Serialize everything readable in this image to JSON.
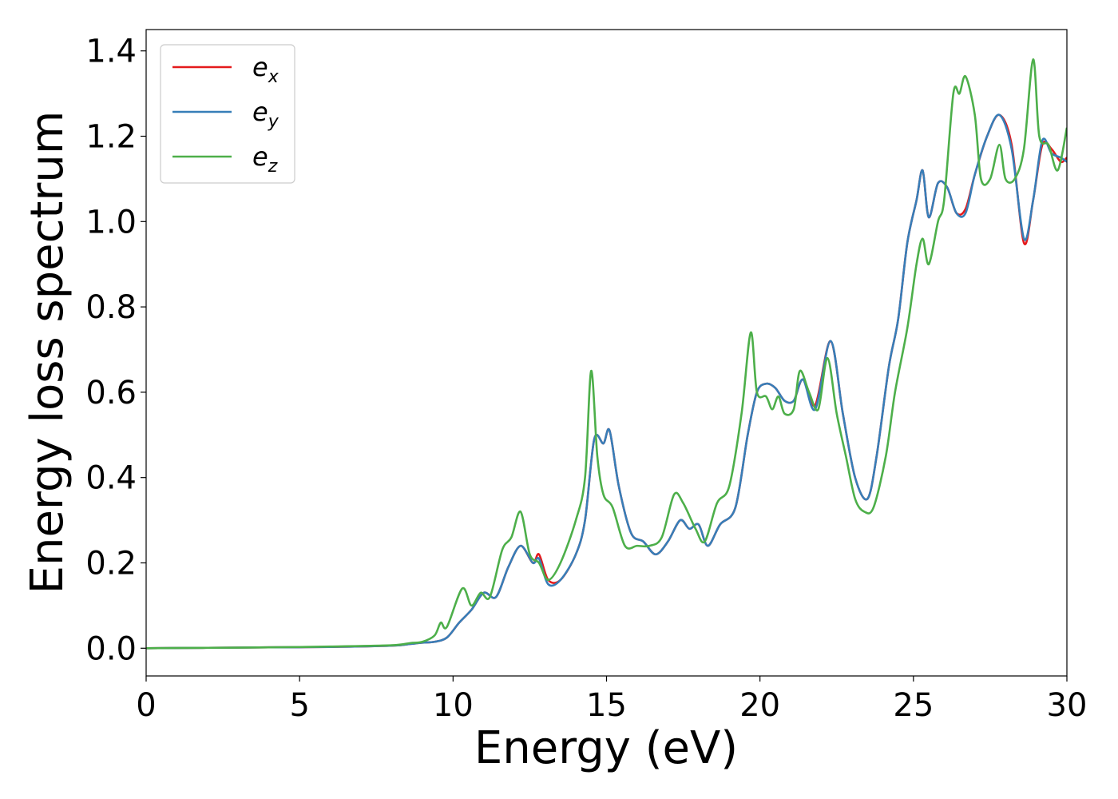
{
  "chart_data": {
    "type": "line",
    "title": "",
    "xlabel": "Energy (eV)",
    "ylabel": "Energy loss spectrum",
    "xlim": [
      0,
      30
    ],
    "ylim": [
      -0.065,
      1.45
    ],
    "xticks": [
      0,
      5,
      10,
      15,
      20,
      25,
      30
    ],
    "xtick_labels": [
      "0",
      "5",
      "10",
      "15",
      "20",
      "25",
      "30"
    ],
    "yticks": [
      0.0,
      0.2,
      0.4,
      0.6,
      0.8,
      1.0,
      1.2,
      1.4
    ],
    "ytick_labels": [
      "0.0",
      "0.2",
      "0.4",
      "0.6",
      "0.8",
      "1.0",
      "1.2",
      "1.4"
    ],
    "grid": false,
    "legend_position": "top-left",
    "series": [
      {
        "name": "e",
        "subscript": "x",
        "color": "#e41a1c",
        "x": [
          0,
          2,
          4,
          6,
          8,
          8.6,
          9,
          9.4,
          9.8,
          10.2,
          10.6,
          11,
          11.4,
          11.8,
          12.2,
          12.6,
          12.8,
          13.1,
          13.5,
          14,
          14.3,
          14.6,
          14.9,
          15.1,
          15.4,
          15.8,
          16.2,
          16.6,
          17,
          17.4,
          17.7,
          18,
          18.3,
          18.7,
          19.2,
          19.6,
          19.9,
          20.2,
          20.5,
          20.8,
          21.1,
          21.4,
          21.8,
          22.3,
          22.7,
          23.1,
          23.5,
          23.8,
          24.2,
          24.5,
          24.8,
          25.1,
          25.3,
          25.5,
          25.8,
          26.1,
          26.4,
          26.7,
          27,
          27.4,
          27.8,
          28.2,
          28.6,
          28.9,
          29.2,
          29.5,
          29.8,
          30
        ],
        "y": [
          0,
          0.001,
          0.002,
          0.003,
          0.006,
          0.01,
          0.013,
          0.015,
          0.025,
          0.06,
          0.09,
          0.13,
          0.12,
          0.19,
          0.24,
          0.2,
          0.22,
          0.16,
          0.16,
          0.22,
          0.3,
          0.49,
          0.48,
          0.51,
          0.38,
          0.27,
          0.25,
          0.22,
          0.25,
          0.3,
          0.28,
          0.29,
          0.24,
          0.29,
          0.33,
          0.5,
          0.6,
          0.62,
          0.61,
          0.58,
          0.58,
          0.63,
          0.57,
          0.72,
          0.55,
          0.4,
          0.35,
          0.45,
          0.66,
          0.77,
          0.95,
          1.05,
          1.12,
          1.01,
          1.09,
          1.08,
          1.02,
          1.03,
          1.11,
          1.2,
          1.25,
          1.18,
          0.95,
          1.05,
          1.18,
          1.17,
          1.14,
          1.15
        ]
      },
      {
        "name": "e",
        "subscript": "y",
        "color": "#377eb8",
        "x": [
          0,
          2,
          4,
          6,
          8,
          8.6,
          9,
          9.4,
          9.8,
          10.2,
          10.6,
          11,
          11.4,
          11.8,
          12.2,
          12.6,
          12.8,
          13.1,
          13.5,
          14,
          14.3,
          14.6,
          14.9,
          15.1,
          15.4,
          15.8,
          16.2,
          16.6,
          17,
          17.4,
          17.7,
          18,
          18.3,
          18.7,
          19.2,
          19.6,
          19.9,
          20.2,
          20.5,
          20.8,
          21.1,
          21.4,
          21.8,
          22.3,
          22.7,
          23.1,
          23.5,
          23.8,
          24.2,
          24.5,
          24.8,
          25.1,
          25.3,
          25.5,
          25.8,
          26.1,
          26.4,
          26.7,
          27,
          27.4,
          27.8,
          28.2,
          28.6,
          28.9,
          29.2,
          29.5,
          29.8,
          30
        ],
        "y": [
          0,
          0.001,
          0.002,
          0.003,
          0.006,
          0.01,
          0.013,
          0.015,
          0.025,
          0.06,
          0.09,
          0.13,
          0.12,
          0.19,
          0.24,
          0.2,
          0.21,
          0.15,
          0.16,
          0.22,
          0.3,
          0.49,
          0.48,
          0.51,
          0.38,
          0.27,
          0.25,
          0.22,
          0.25,
          0.3,
          0.28,
          0.29,
          0.24,
          0.29,
          0.33,
          0.5,
          0.6,
          0.62,
          0.61,
          0.58,
          0.58,
          0.63,
          0.56,
          0.72,
          0.55,
          0.4,
          0.35,
          0.45,
          0.66,
          0.77,
          0.95,
          1.05,
          1.12,
          1.01,
          1.09,
          1.08,
          1.02,
          1.02,
          1.11,
          1.2,
          1.25,
          1.17,
          0.96,
          1.05,
          1.19,
          1.16,
          1.15,
          1.14
        ]
      },
      {
        "name": "e",
        "subscript": "z",
        "color": "#4daf4a",
        "x": [
          0,
          2,
          4,
          6,
          8,
          8.6,
          9,
          9.4,
          9.6,
          9.8,
          10.3,
          10.6,
          10.9,
          11.2,
          11.6,
          11.9,
          12.2,
          12.5,
          12.8,
          13.1,
          13.5,
          14,
          14.3,
          14.5,
          14.7,
          14.9,
          15.2,
          15.6,
          16,
          16.4,
          16.8,
          17.2,
          17.5,
          17.9,
          18.2,
          18.6,
          19,
          19.4,
          19.7,
          19.9,
          20.2,
          20.4,
          20.6,
          20.8,
          21.1,
          21.3,
          21.6,
          21.9,
          22.2,
          22.5,
          22.8,
          23.1,
          23.4,
          23.7,
          24.1,
          24.4,
          24.8,
          25.1,
          25.3,
          25.5,
          25.8,
          26,
          26.3,
          26.5,
          26.7,
          27,
          27.2,
          27.5,
          27.8,
          28,
          28.3,
          28.6,
          28.9,
          29.1,
          29.4,
          29.7,
          30
        ],
        "y": [
          0,
          0.001,
          0.002,
          0.004,
          0.007,
          0.012,
          0.015,
          0.03,
          0.06,
          0.05,
          0.14,
          0.1,
          0.13,
          0.12,
          0.23,
          0.26,
          0.32,
          0.22,
          0.2,
          0.16,
          0.2,
          0.3,
          0.4,
          0.65,
          0.45,
          0.36,
          0.33,
          0.24,
          0.24,
          0.24,
          0.26,
          0.36,
          0.34,
          0.28,
          0.25,
          0.34,
          0.38,
          0.55,
          0.74,
          0.6,
          0.59,
          0.56,
          0.59,
          0.55,
          0.56,
          0.65,
          0.6,
          0.56,
          0.68,
          0.55,
          0.45,
          0.35,
          0.32,
          0.33,
          0.45,
          0.6,
          0.75,
          0.9,
          0.96,
          0.9,
          1.0,
          1.05,
          1.3,
          1.3,
          1.34,
          1.25,
          1.1,
          1.1,
          1.18,
          1.1,
          1.1,
          1.17,
          1.38,
          1.2,
          1.18,
          1.12,
          1.22
        ]
      }
    ]
  }
}
